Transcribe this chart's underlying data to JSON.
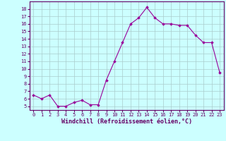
{
  "x": [
    0,
    1,
    2,
    3,
    4,
    5,
    6,
    7,
    8,
    9,
    10,
    11,
    12,
    13,
    14,
    15,
    16,
    17,
    18,
    19,
    20,
    21,
    22,
    23
  ],
  "y": [
    6.5,
    6.0,
    6.5,
    5.0,
    5.0,
    5.5,
    5.8,
    5.2,
    5.2,
    8.5,
    11.0,
    13.5,
    16.0,
    16.8,
    18.2,
    16.8,
    16.0,
    16.0,
    15.8,
    15.8,
    14.5,
    13.5,
    13.5,
    9.5
  ],
  "line_color": "#990099",
  "marker": "D",
  "marker_size": 1.8,
  "background_color": "#ccffff",
  "grid_color": "#aacccc",
  "xlabel": "Windchill (Refroidissement éolien,°C)",
  "ylabel": "",
  "ylim": [
    4.5,
    19.0
  ],
  "xlim": [
    -0.5,
    23.5
  ],
  "yticks": [
    5,
    6,
    7,
    8,
    9,
    10,
    11,
    12,
    13,
    14,
    15,
    16,
    17,
    18
  ],
  "xticks": [
    0,
    1,
    2,
    3,
    4,
    5,
    6,
    7,
    8,
    9,
    10,
    11,
    12,
    13,
    14,
    15,
    16,
    17,
    18,
    19,
    20,
    21,
    22,
    23
  ],
  "tick_fontsize": 5.0,
  "xlabel_fontsize": 6.0,
  "axis_color": "#660066",
  "spine_color": "#660066",
  "spine_bottom_color": "#660066"
}
